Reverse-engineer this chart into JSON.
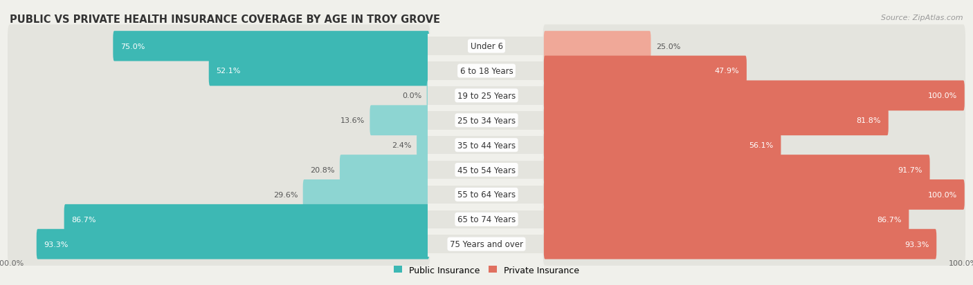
{
  "title": "PUBLIC VS PRIVATE HEALTH INSURANCE COVERAGE BY AGE IN TROY GROVE",
  "source": "Source: ZipAtlas.com",
  "categories": [
    "Under 6",
    "6 to 18 Years",
    "19 to 25 Years",
    "25 to 34 Years",
    "35 to 44 Years",
    "45 to 54 Years",
    "55 to 64 Years",
    "65 to 74 Years",
    "75 Years and over"
  ],
  "public_values": [
    75.0,
    52.1,
    0.0,
    13.6,
    2.4,
    20.8,
    29.6,
    86.7,
    93.3
  ],
  "private_values": [
    25.0,
    47.9,
    100.0,
    81.8,
    56.1,
    91.7,
    100.0,
    86.7,
    93.3
  ],
  "public_color_strong": "#3db8b4",
  "public_color_light": "#8dd5d2",
  "private_color_strong": "#e07060",
  "private_color_light": "#f0a898",
  "background_color": "#f0f0eb",
  "row_bg_color": "#e4e4de",
  "bar_height": 0.62,
  "title_fontsize": 10.5,
  "label_fontsize": 8.5,
  "value_fontsize": 8,
  "legend_fontsize": 9,
  "source_fontsize": 8,
  "strong_threshold": 40
}
